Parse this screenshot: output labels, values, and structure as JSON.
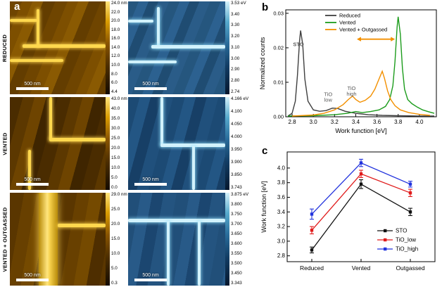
{
  "figure": {
    "panel_a_label": "a",
    "panel_b_label": "b",
    "panel_c_label": "c"
  },
  "panel_a": {
    "rows": [
      {
        "label": "REDUCED",
        "scalebar": "500 nm",
        "topo_ticks": [
          "24.0 nm",
          "22.0",
          "20.0",
          "18.0",
          "16.0",
          "14.0",
          "12.0",
          "10.0",
          "8.0",
          "6.0",
          "4.4"
        ],
        "wf_ticks": [
          "3.53 eV",
          "3.40",
          "3.30",
          "3.20",
          "3.10",
          "3.00",
          "2.90",
          "2.80",
          "2.74"
        ]
      },
      {
        "label": "VENTED",
        "scalebar": "500 nm",
        "topo_ticks": [
          "43.0 nm",
          "40.0",
          "35.0",
          "30.0",
          "25.0",
          "20.0",
          "15.0",
          "10.0",
          "5.0",
          "0.0"
        ],
        "wf_ticks": [
          "4.166 eV",
          "4.100",
          "4.050",
          "4.000",
          "3.950",
          "3.900",
          "3.850",
          "3.743"
        ]
      },
      {
        "label": "VENTED + OUTGASSED",
        "scalebar": "500 nm",
        "topo_ticks": [
          "29.0 nm",
          "25.0",
          "20.0",
          "15.0",
          "10.0",
          "5.0",
          "0.3"
        ],
        "wf_ticks": [
          "3.875 eV",
          "3.800",
          "3.750",
          "3.700",
          "3.650",
          "3.600",
          "3.550",
          "3.500",
          "3.450",
          "3.343"
        ]
      }
    ]
  },
  "chart_data": [
    {
      "type": "line",
      "panel": "b",
      "xlabel": "Work function [eV]",
      "ylabel": "Normalized counts",
      "xlim": [
        2.74,
        4.16
      ],
      "ylim": [
        0,
        0.031
      ],
      "xticks": [
        "2.8",
        "3.0",
        "3.2",
        "3.4",
        "3.6",
        "3.8",
        "4.0"
      ],
      "yticks": [
        "0.00",
        "0.01",
        "0.02",
        "0.03"
      ],
      "legend_position": "top-inside",
      "grid": false,
      "series": [
        {
          "name": "Reduced",
          "color": "#3f3f3f",
          "points": [
            [
              2.76,
              0.0002
            ],
            [
              2.8,
              0.001
            ],
            [
              2.83,
              0.0045
            ],
            [
              2.85,
              0.012
            ],
            [
              2.87,
              0.022
            ],
            [
              2.88,
              0.025
            ],
            [
              2.9,
              0.021
            ],
            [
              2.92,
              0.011
            ],
            [
              2.95,
              0.0045
            ],
            [
              3.0,
              0.002
            ],
            [
              3.06,
              0.0016
            ],
            [
              3.12,
              0.0018
            ],
            [
              3.18,
              0.0025
            ],
            [
              3.23,
              0.0024
            ],
            [
              3.3,
              0.0016
            ],
            [
              3.4,
              0.001
            ],
            [
              3.52,
              0.0006
            ],
            [
              3.65,
              0.0004
            ],
            [
              3.8,
              0.0003
            ],
            [
              4.0,
              0.0002
            ],
            [
              4.14,
              0.0002
            ]
          ]
        },
        {
          "name": "Vented",
          "color": "#1c9c1c",
          "points": [
            [
              2.76,
              0.0002
            ],
            [
              3.0,
              0.0003
            ],
            [
              3.2,
              0.0006
            ],
            [
              3.32,
              0.001
            ],
            [
              3.4,
              0.0015
            ],
            [
              3.46,
              0.0012
            ],
            [
              3.54,
              0.0015
            ],
            [
              3.62,
              0.002
            ],
            [
              3.68,
              0.003
            ],
            [
              3.72,
              0.005
            ],
            [
              3.75,
              0.009
            ],
            [
              3.77,
              0.016
            ],
            [
              3.79,
              0.026
            ],
            [
              3.8,
              0.029
            ],
            [
              3.82,
              0.024
            ],
            [
              3.84,
              0.014
            ],
            [
              3.86,
              0.008
            ],
            [
              3.89,
              0.005
            ],
            [
              3.93,
              0.0038
            ],
            [
              3.98,
              0.0028
            ],
            [
              4.03,
              0.002
            ],
            [
              4.08,
              0.0015
            ],
            [
              4.14,
              0.001
            ]
          ]
        },
        {
          "name": "Vented + Outgassed",
          "color": "#f39000",
          "points": [
            [
              2.8,
              0.0002
            ],
            [
              3.0,
              0.0005
            ],
            [
              3.1,
              0.001
            ],
            [
              3.2,
              0.002
            ],
            [
              3.28,
              0.0035
            ],
            [
              3.33,
              0.005
            ],
            [
              3.37,
              0.006
            ],
            [
              3.4,
              0.005
            ],
            [
              3.44,
              0.0042
            ],
            [
              3.49,
              0.0048
            ],
            [
              3.54,
              0.006
            ],
            [
              3.58,
              0.008
            ],
            [
              3.62,
              0.011
            ],
            [
              3.65,
              0.0132
            ],
            [
              3.67,
              0.0112
            ],
            [
              3.7,
              0.0075
            ],
            [
              3.73,
              0.005
            ],
            [
              3.77,
              0.0032
            ],
            [
              3.82,
              0.002
            ],
            [
              3.9,
              0.0012
            ],
            [
              4.0,
              0.0007
            ],
            [
              4.1,
              0.0004
            ]
          ]
        }
      ],
      "annotations": [
        {
          "lines": [
            "STO"
          ],
          "x": 2.86,
          "y": 0.0205,
          "color": "#5a5a5a",
          "bold": true
        },
        {
          "lines": [
            "TiO",
            "low"
          ],
          "x": 3.14,
          "y": 0.006,
          "color": "#5a5a5a",
          "bold": false
        },
        {
          "lines": [
            "TiO",
            "high"
          ],
          "x": 3.36,
          "y": 0.0078,
          "color": "#5a5a5a",
          "bold": false
        }
      ],
      "arrow": {
        "x1": 3.41,
        "x2": 3.77,
        "y": 0.0225,
        "color": "#f39000"
      }
    },
    {
      "type": "line",
      "panel": "c",
      "xlabel": "",
      "ylabel": "Work function [eV]",
      "categories": [
        "Reduced",
        "Vented",
        "Outgassed"
      ],
      "ylim": [
        2.72,
        4.22
      ],
      "yticks": [
        "2.8",
        "3.0",
        "3.2",
        "3.4",
        "3.6",
        "3.8",
        "4.0"
      ],
      "legend_position": "bottom-right-inside",
      "grid": false,
      "series": [
        {
          "name": "STO",
          "color": "#111111",
          "values": [
            2.88,
            3.78,
            3.4
          ],
          "errors": [
            0.04,
            0.06,
            0.05
          ]
        },
        {
          "name": "TiO_low",
          "color": "#e01b1b",
          "values": [
            3.15,
            3.92,
            3.66
          ],
          "errors": [
            0.05,
            0.05,
            0.05
          ]
        },
        {
          "name": "TiO_high",
          "color": "#2233dd",
          "values": [
            3.37,
            4.07,
            3.78
          ],
          "errors": [
            0.07,
            0.05,
            0.04
          ]
        }
      ]
    }
  ]
}
